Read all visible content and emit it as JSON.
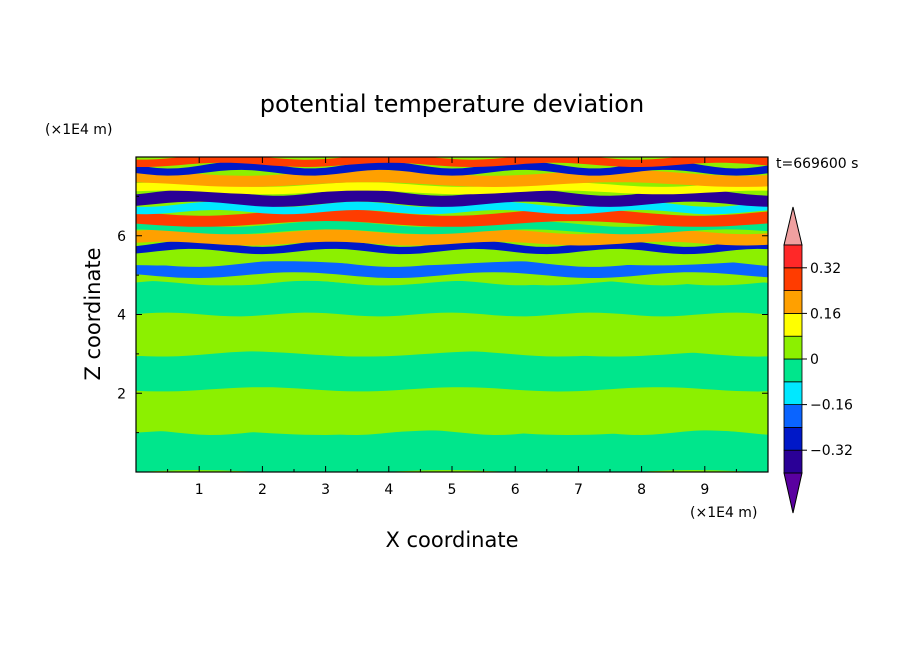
{
  "chart_data": {
    "type": "heatmap",
    "title": "potential temperature deviation",
    "xlabel": "X coordinate",
    "ylabel": "Z coordinate",
    "x_unit": "(×1E4 m)",
    "y_unit": "(×1E4 m)",
    "time_label": "t=669600 s",
    "xlim": [
      0,
      10
    ],
    "ylim": [
      0,
      8
    ],
    "x_ticks": [
      "1",
      "2",
      "3",
      "4",
      "5",
      "6",
      "7",
      "8",
      "9"
    ],
    "y_ticks": [
      "2",
      "4",
      "6"
    ],
    "colorbar": {
      "labels": [
        "0.32",
        "0.16",
        "0",
        "−0.16",
        "−0.32"
      ],
      "levels": [
        -0.4,
        -0.32,
        -0.24,
        -0.16,
        -0.08,
        0,
        0.08,
        0.16,
        0.24,
        0.32,
        0.4
      ],
      "colors": [
        "#5a00a0",
        "#2a0096",
        "#0018c8",
        "#0a64ff",
        "#00e8ff",
        "#00e68c",
        "#8cf000",
        "#ffff00",
        "#ffa000",
        "#ff3c00",
        "#ff2828",
        "#f0a0a0"
      ]
    },
    "field": {
      "y_bands": [
        0,
        1.0,
        2.0,
        2.1,
        3.0,
        4.0,
        4.8,
        5.0,
        5.3,
        5.6,
        5.8,
        6.1,
        6.3,
        6.6,
        6.8,
        7.1,
        7.3,
        7.6,
        7.8,
        8.0
      ],
      "band_values": [
        -0.02,
        0.03,
        0.05,
        -0.02,
        0.04,
        -0.01,
        0.05,
        -0.22,
        0.06,
        -0.3,
        0.18,
        -0.08,
        0.24,
        -0.12,
        -0.34,
        0.14,
        0.22,
        -0.28,
        0.3
      ]
    }
  }
}
